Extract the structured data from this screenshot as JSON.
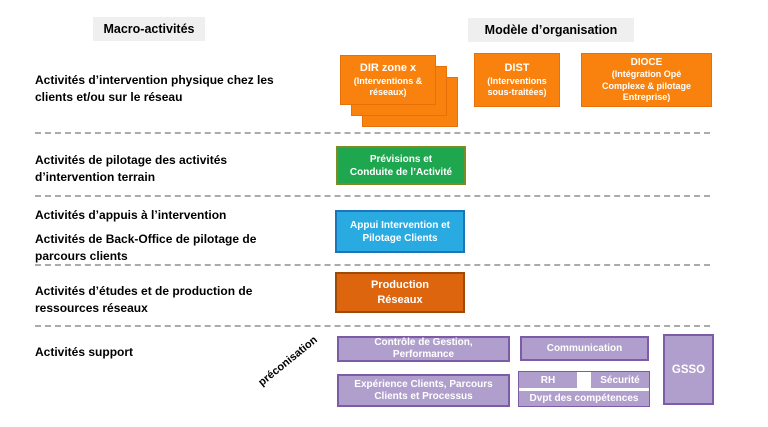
{
  "headers": {
    "macro": "Macro-activités",
    "modele": "Modèle d’organisation"
  },
  "rows": [
    {
      "label": "Activités d’intervention physique chez les\nclients et/ou sur le réseau"
    },
    {
      "label": "Activités de pilotage des activités\nd’intervention terrain"
    },
    {
      "label": "Activités d’appuis à l’intervention",
      "label2": "Activités de Back-Office de pilotage de\nparcours clients"
    },
    {
      "label": "Activités d’études et de production de\nressources réseaux"
    },
    {
      "label": "Activités support"
    }
  ],
  "annotation": "préconisation",
  "org_boxes": {
    "dir": {
      "title": "DIR zone x",
      "subtitle": "(Interventions &\nréseaux)"
    },
    "dist": {
      "title": "DIST",
      "subtitle": "(Interventions\nsous-traitées)"
    },
    "dioce": {
      "title": "DIOCE",
      "subtitle": "(Intégration Opé\nComplexe & pilotage\nEntreprise)"
    },
    "previsions": "Prévisions et\nConduite de l’Activité",
    "appui": "Appui Intervention et\nPilotage Clients",
    "production": "Production\nRéseaux",
    "controle": "Contrôle de Gestion,\nPerformance",
    "experience": "Expérience Clients, Parcours\nClients et Processus",
    "communication": "Communication",
    "rh": "RH",
    "securite": "Sécurité",
    "dvpt": "Dvpt des compétences",
    "gsso": "GSSO"
  },
  "colors": {
    "orange": "#F8820D",
    "dark_orange": "#DC650E",
    "green": "#1FA750",
    "green_border": "#7D8B21",
    "blue": "#29ABE2",
    "blue_border": "#1B75BC",
    "purple": "#B09FCC",
    "purple_border": "#7C5CA6",
    "header_bg": "#EFEFEF",
    "separator": "#ABABAB"
  }
}
